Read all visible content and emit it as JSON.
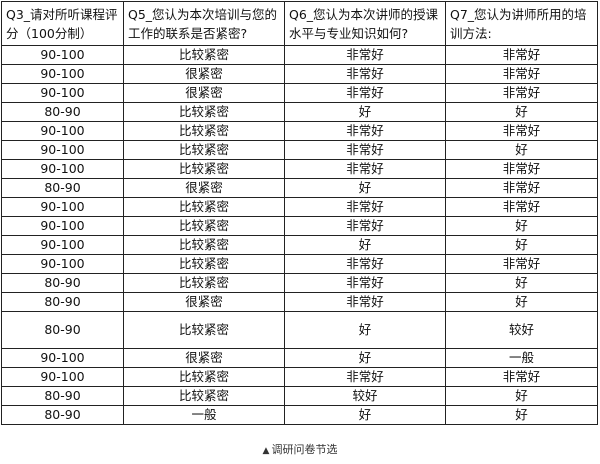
{
  "table": {
    "headers": [
      "Q3_请对所听课程评分（100分制）",
      "Q5_您认为本次培训与您的工作的联系是否紧密?",
      "Q6_您认为本次讲师的授课水平与专业知识如何?",
      "Q7_您认为讲师所用的培训方法:"
    ],
    "rows": [
      [
        "90-100",
        "比较紧密",
        "非常好",
        "非常好"
      ],
      [
        "90-100",
        "很紧密",
        "非常好",
        "非常好"
      ],
      [
        "90-100",
        "很紧密",
        "非常好",
        "非常好"
      ],
      [
        "80-90",
        "比较紧密",
        "好",
        "好"
      ],
      [
        "90-100",
        "比较紧密",
        "非常好",
        "非常好"
      ],
      [
        "90-100",
        "比较紧密",
        "非常好",
        "好"
      ],
      [
        "90-100",
        "比较紧密",
        "非常好",
        "非常好"
      ],
      [
        "80-90",
        "很紧密",
        "好",
        "非常好"
      ],
      [
        "90-100",
        "比较紧密",
        "非常好",
        "非常好"
      ],
      [
        "90-100",
        "比较紧密",
        "非常好",
        "好"
      ],
      [
        "90-100",
        "比较紧密",
        "好",
        "好"
      ],
      [
        "90-100",
        "比较紧密",
        "非常好",
        "非常好"
      ],
      [
        "80-90",
        "比较紧密",
        "非常好",
        "好"
      ],
      [
        "80-90",
        "很紧密",
        "非常好",
        "好"
      ],
      [
        "80-90",
        "比较紧密",
        "好",
        "较好"
      ],
      [
        "90-100",
        "很紧密",
        "好",
        "一般"
      ],
      [
        "90-100",
        "比较紧密",
        "非常好",
        "非常好"
      ],
      [
        "80-90",
        "比较紧密",
        "较好",
        "好"
      ],
      [
        "80-90",
        "一般",
        "好",
        "好"
      ]
    ],
    "tall_row_index": 14
  },
  "caption": {
    "marker": "▲",
    "text": "调研问卷节选"
  }
}
